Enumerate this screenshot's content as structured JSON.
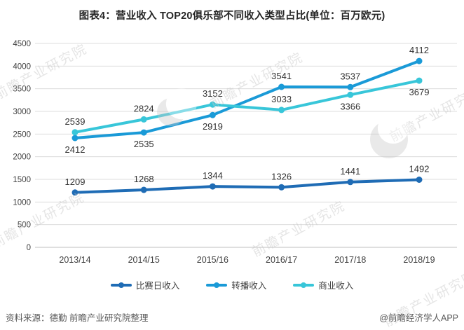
{
  "title": "图表4：营业收入 TOP20俱乐部不同收入类型占比(单位：百万欧元)",
  "chart_data": {
    "type": "line",
    "categories": [
      "2013/14",
      "2014/15",
      "2015/16",
      "2016/17",
      "2017/18",
      "2018/19"
    ],
    "series": [
      {
        "name": "比赛日收入",
        "color": "#1f6cb5",
        "values": [
          1209,
          1268,
          1344,
          1326,
          1441,
          1492
        ],
        "label_positions": [
          "above",
          "above",
          "above",
          "above",
          "above",
          "above"
        ]
      },
      {
        "name": "转播收入",
        "color": "#1a9ad7",
        "values": [
          2412,
          2535,
          2919,
          3541,
          3537,
          4112
        ],
        "label_positions": [
          "below",
          "below",
          "below",
          "above",
          "above",
          "above"
        ]
      },
      {
        "name": "商业收入",
        "color": "#38c6d9",
        "values": [
          2539,
          2824,
          3152,
          3033,
          3366,
          3679
        ],
        "label_positions": [
          "above",
          "above",
          "above",
          "above",
          "below",
          "below"
        ]
      }
    ],
    "title": "图表4：营业收入 TOP20俱乐部不同收入类型占比(单位：百万欧元)",
    "xlabel": "",
    "ylabel": "",
    "ylim": [
      0,
      4500
    ],
    "ytick_step": 500,
    "grid": "horizontal",
    "legend_position": "bottom"
  },
  "footer": {
    "source": "资料来源：德勤 前瞻产业研究院整理",
    "credit": "@前瞻经济学人APP"
  },
  "watermark": {
    "text": "前瞻产业研究院"
  }
}
